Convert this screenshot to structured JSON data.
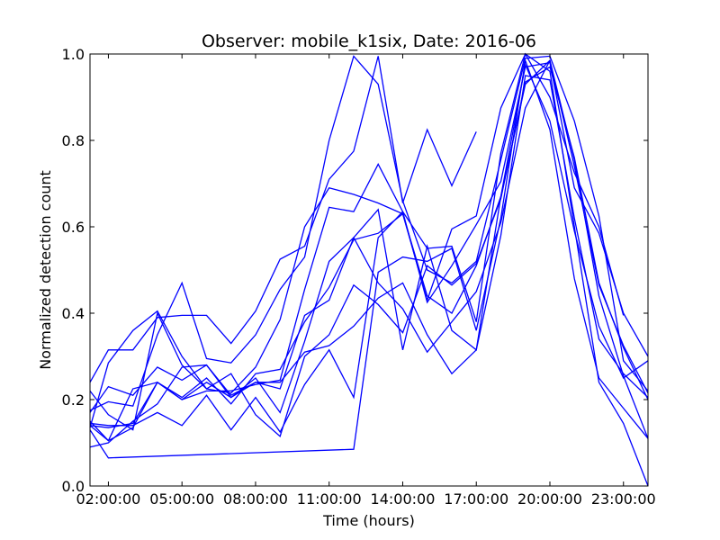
{
  "chart_data": {
    "type": "line",
    "title": "Observer: mobile_k1six, Date: 2016-06",
    "xlabel": "Time (hours)",
    "ylabel": "Normalized detection count",
    "xlim": [
      1.25,
      24.0
    ],
    "ylim": [
      0.0,
      1.0
    ],
    "x_ticks": [
      {
        "value": 2,
        "label": "02:00:00"
      },
      {
        "value": 5,
        "label": "05:00:00"
      },
      {
        "value": 8,
        "label": "08:00:00"
      },
      {
        "value": 11,
        "label": "11:00:00"
      },
      {
        "value": 14,
        "label": "14:00:00"
      },
      {
        "value": 17,
        "label": "17:00:00"
      },
      {
        "value": 20,
        "label": "20:00:00"
      },
      {
        "value": 23,
        "label": "23:00:00"
      }
    ],
    "y_ticks": [
      {
        "value": 0.0,
        "label": "0.0"
      },
      {
        "value": 0.2,
        "label": "0.2"
      },
      {
        "value": 0.4,
        "label": "0.4"
      },
      {
        "value": 0.6,
        "label": "0.6"
      },
      {
        "value": 0.8,
        "label": "0.8"
      },
      {
        "value": 1.0,
        "label": "1.0"
      }
    ],
    "grid": false,
    "line_color": "#0000ff",
    "series": [
      {
        "x": [
          1.25,
          2,
          3,
          4,
          5,
          6,
          7,
          8,
          9,
          10,
          11,
          12,
          13,
          14,
          15,
          16,
          17
        ],
        "y": [
          0.24,
          0.315,
          0.315,
          0.39,
          0.395,
          0.395,
          0.33,
          0.405,
          0.525,
          0.555,
          0.71,
          0.775,
          0.995,
          0.655,
          0.825,
          0.695,
          0.82
        ]
      },
      {
        "x": [
          1.25,
          2,
          3,
          4,
          5,
          6,
          7,
          8,
          9,
          10,
          11,
          12,
          13,
          14,
          15,
          16,
          17,
          18,
          19,
          20,
          21,
          22,
          23,
          24
        ],
        "y": [
          0.14,
          0.105,
          0.135,
          0.24,
          0.205,
          0.25,
          0.19,
          0.26,
          0.27,
          0.38,
          0.46,
          0.57,
          0.585,
          0.63,
          0.43,
          0.595,
          0.625,
          0.875,
          1.0,
          0.9,
          0.725,
          0.6,
          0.395,
          null
        ]
      },
      {
        "x": [
          1.25,
          2,
          3,
          4,
          5,
          6,
          7,
          8,
          9,
          10,
          11,
          12,
          13,
          14,
          15,
          16,
          17,
          18,
          19,
          20,
          21,
          22,
          23,
          24
        ],
        "y": [
          0.175,
          0.195,
          0.185,
          0.35,
          0.47,
          0.295,
          0.285,
          0.35,
          0.455,
          0.53,
          0.8,
          0.995,
          0.93,
          0.66,
          0.5,
          0.47,
          0.52,
          0.755,
          0.99,
          0.995,
          0.845,
          0.625,
          0.29,
          0.22
        ]
      },
      {
        "x": [
          1.25,
          2,
          3,
          4,
          5,
          6,
          7,
          8,
          9,
          10,
          11,
          12,
          13,
          14,
          15,
          16,
          17,
          18,
          19,
          20,
          21,
          22,
          23,
          24
        ],
        "y": [
          0.15,
          0.105,
          0.225,
          0.24,
          0.2,
          0.22,
          0.22,
          0.235,
          0.245,
          0.455,
          0.645,
          0.635,
          0.745,
          0.635,
          0.425,
          0.51,
          0.605,
          0.705,
          0.97,
          0.98,
          0.69,
          0.585,
          0.4,
          0.3
        ]
      },
      {
        "x": [
          1.25,
          2,
          3,
          4,
          5,
          6,
          7,
          8,
          9,
          10,
          11,
          12,
          13,
          14,
          15,
          16,
          17,
          18,
          19,
          20,
          21,
          22,
          23,
          24
        ],
        "y": [
          0.22,
          0.165,
          0.13,
          0.4,
          0.28,
          0.225,
          0.215,
          0.275,
          0.385,
          0.6,
          0.69,
          0.675,
          0.655,
          0.63,
          0.44,
          0.4,
          0.51,
          0.67,
          0.93,
          0.985,
          0.74,
          0.465,
          0.325,
          0.215
        ]
      },
      {
        "x": [
          1.25,
          2,
          3,
          4,
          5,
          6,
          7,
          8,
          9,
          10,
          11,
          12,
          13,
          14,
          15,
          16,
          17,
          18,
          19,
          20,
          21,
          22,
          23,
          24
        ],
        "y": [
          0.17,
          0.23,
          0.21,
          0.275,
          0.245,
          0.28,
          0.21,
          0.24,
          0.225,
          0.395,
          0.43,
          0.575,
          0.64,
          0.315,
          0.555,
          0.36,
          0.315,
          0.67,
          0.975,
          0.845,
          0.59,
          0.37,
          0.25,
          0.29
        ]
      },
      {
        "x": [
          1.25,
          2,
          3,
          4,
          5,
          6,
          7,
          8,
          9,
          10,
          11,
          12,
          13,
          14,
          15,
          16,
          17,
          18,
          19,
          20,
          21,
          22,
          23,
          24
        ],
        "y": [
          0.09,
          0.1,
          0.15,
          0.19,
          0.275,
          0.28,
          0.205,
          0.25,
          0.17,
          0.335,
          0.52,
          0.575,
          0.47,
          0.41,
          0.31,
          0.38,
          0.45,
          0.61,
          0.875,
          0.985,
          0.755,
          0.44,
          0.255,
          0.11
        ]
      },
      {
        "x": [
          1.25,
          2,
          3,
          4,
          5,
          6,
          7,
          8,
          9,
          10,
          11,
          12,
          13,
          14,
          15,
          16,
          17,
          18,
          19,
          20,
          21,
          22,
          23,
          24
        ],
        "y": [
          0.14,
          0.135,
          0.145,
          0.24,
          0.2,
          0.24,
          0.205,
          0.24,
          0.24,
          0.31,
          0.325,
          0.37,
          0.435,
          0.47,
          0.35,
          0.26,
          0.315,
          0.58,
          0.95,
          0.94,
          0.62,
          0.34,
          0.26,
          0.205
        ]
      },
      {
        "x": [
          1.25,
          2,
          3,
          4,
          5,
          6,
          7,
          8,
          9,
          10,
          11,
          12,
          13,
          14,
          15,
          16,
          17,
          18,
          19,
          20,
          21,
          22,
          23,
          24
        ],
        "y": [
          0.135,
          0.285,
          0.36,
          0.405,
          0.3,
          0.225,
          0.26,
          0.165,
          0.115,
          0.3,
          0.35,
          0.465,
          0.42,
          0.355,
          0.51,
          0.465,
          0.515,
          0.665,
          0.935,
          0.97,
          0.76,
          0.47,
          0.32,
          0.2
        ]
      },
      {
        "x": [
          1.25,
          2,
          3,
          4,
          5,
          6,
          7,
          8,
          9,
          10,
          11,
          12,
          13,
          14,
          15,
          16,
          17,
          18,
          19,
          20,
          21,
          22,
          23,
          24
        ],
        "y": [
          0.13,
          0.065,
          null,
          null,
          null,
          null,
          null,
          null,
          null,
          null,
          null,
          0.085,
          0.495,
          0.53,
          0.52,
          0.55,
          0.36,
          0.62,
          0.985,
          0.825,
          0.48,
          0.25,
          0.18,
          0.11
        ]
      },
      {
        "x": [
          1.25,
          2,
          3,
          4,
          5,
          6,
          7,
          8,
          9,
          10,
          11,
          12,
          13,
          14,
          15,
          16,
          17,
          18,
          19,
          20,
          21,
          22,
          23,
          24
        ],
        "y": [
          0.145,
          0.14,
          0.14,
          0.17,
          0.14,
          0.21,
          0.13,
          0.205,
          0.125,
          0.235,
          0.315,
          0.205,
          0.575,
          0.635,
          0.55,
          0.555,
          0.38,
          0.77,
          1.0,
          0.96,
          0.6,
          0.24,
          0.145,
          0.0
        ]
      }
    ]
  }
}
